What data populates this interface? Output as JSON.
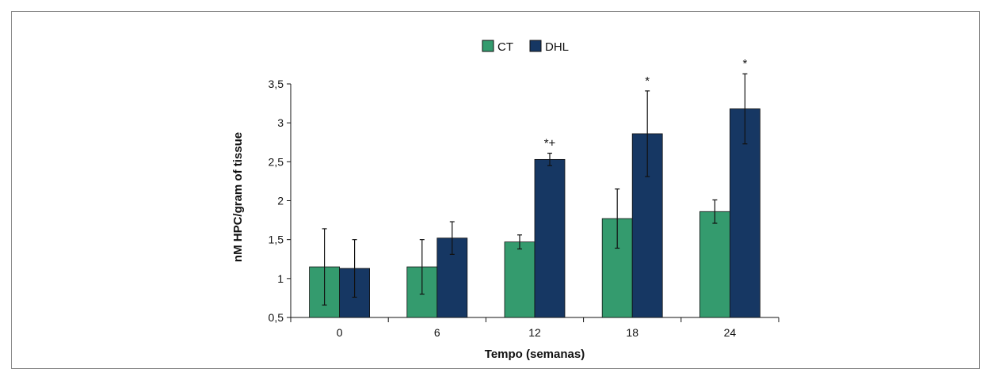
{
  "chart_data": {
    "type": "bar",
    "categories": [
      "0",
      "6",
      "12",
      "18",
      "24"
    ],
    "series": [
      {
        "name": "CT",
        "color": "#349b6e",
        "values": [
          1.15,
          1.15,
          1.47,
          1.77,
          1.86
        ],
        "errors": [
          0.49,
          0.35,
          0.09,
          0.38,
          0.15
        ]
      },
      {
        "name": "DHL",
        "color": "#163763",
        "values": [
          1.13,
          1.52,
          2.53,
          2.86,
          3.18
        ],
        "errors": [
          0.37,
          0.21,
          0.08,
          0.55,
          0.45
        ]
      }
    ],
    "annotations": [
      "",
      "",
      "*+",
      "*",
      "*"
    ],
    "xlabel": "Tempo (semanas)",
    "ylabel": "nM HPC/gram of tissue",
    "ylim": [
      0.5,
      3.5
    ],
    "yticks": [
      "0,5",
      "1",
      "1,5",
      "2",
      "2,5",
      "3",
      "3,5"
    ],
    "legend_position": "top-center"
  }
}
